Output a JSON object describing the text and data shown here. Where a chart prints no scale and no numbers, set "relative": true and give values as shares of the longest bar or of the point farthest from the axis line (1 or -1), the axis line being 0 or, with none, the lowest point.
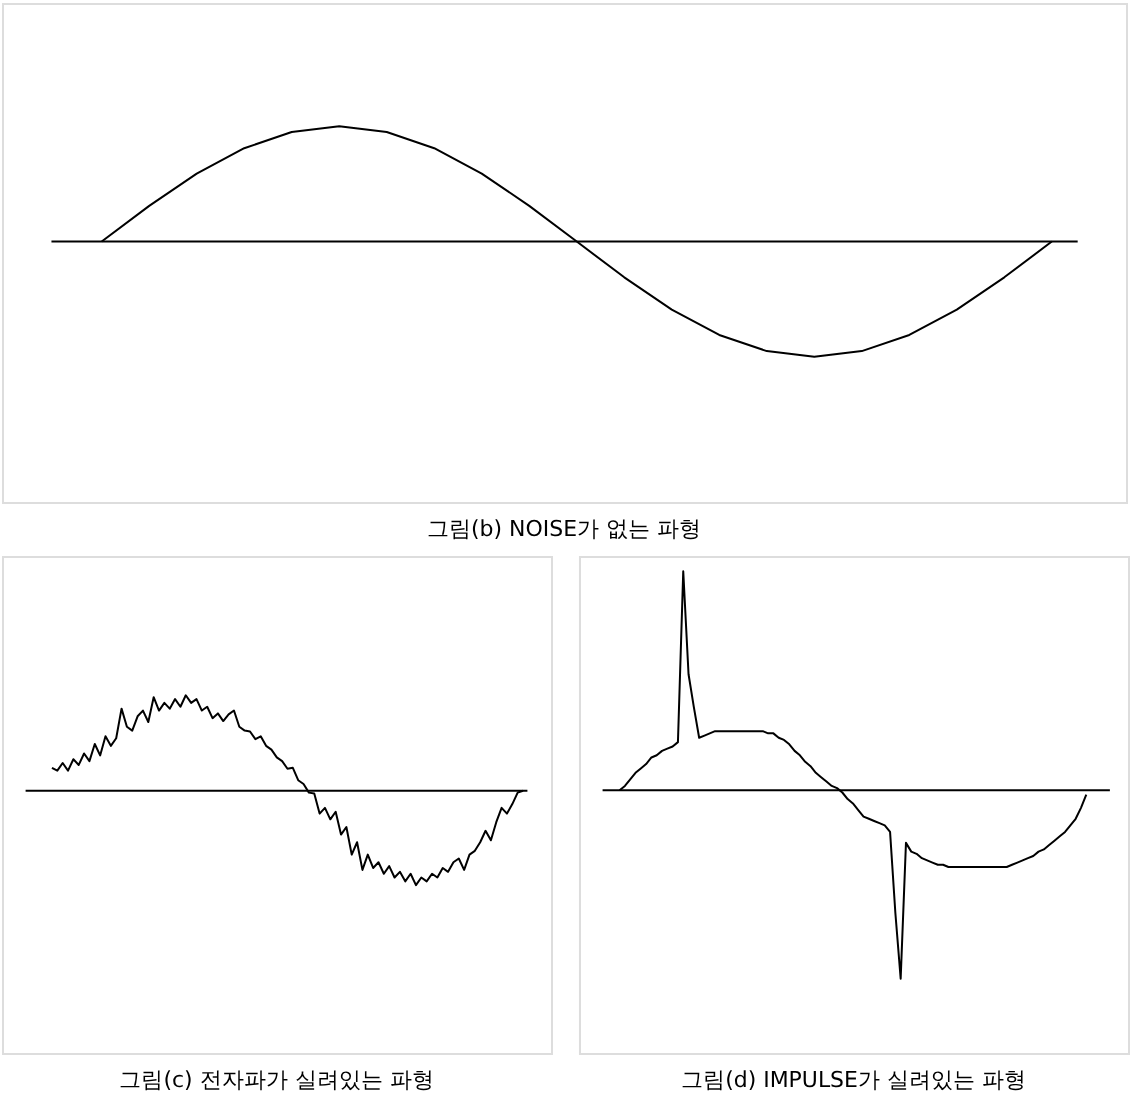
{
  "chart_data": [
    {
      "type": "line",
      "title": "그림(b) NOISE가 없는 파형",
      "relative": true,
      "categories": [
        null,
        null,
        null,
        null,
        null,
        null,
        null,
        null,
        null,
        null,
        null,
        null,
        null,
        null,
        null,
        null,
        null,
        null,
        null,
        null,
        null
      ],
      "series": [
        {
          "color": "#000000",
          "values": [
            0,
            0.31,
            0.59,
            0.81,
            0.95,
            1,
            0.95,
            0.81,
            0.59,
            0.31,
            0,
            -0.31,
            -0.59,
            -0.81,
            -0.95,
            -1,
            -0.95,
            -0.81,
            -0.59,
            -0.31,
            0
          ]
        }
      ]
    },
    {
      "type": "line",
      "title": "그림(c) 전자파가 실려있는 파형",
      "relative": true,
      "categories": [
        null,
        null,
        null,
        null,
        null,
        null,
        null,
        null,
        null,
        null,
        null,
        null,
        null,
        null,
        null,
        null,
        null,
        null,
        null,
        null,
        null,
        null,
        null,
        null,
        null,
        null,
        null,
        null,
        null,
        null,
        null,
        null,
        null,
        null,
        null,
        null,
        null,
        null,
        null,
        null,
        null,
        null,
        null,
        null,
        null,
        null,
        null,
        null,
        null,
        null,
        null,
        null,
        null,
        null,
        null,
        null,
        null,
        null,
        null,
        null,
        null,
        null,
        null,
        null,
        null,
        null,
        null,
        null,
        null,
        null,
        null,
        null,
        null,
        null,
        null,
        null,
        null,
        null,
        null,
        null,
        null,
        null,
        null,
        null,
        null,
        null,
        null,
        null,
        null
      ],
      "series": [
        {
          "color": "#000000",
          "values": [
            0.24,
            0.21,
            0.29,
            0.21,
            0.33,
            0.27,
            0.39,
            0.31,
            0.49,
            0.37,
            0.57,
            0.47,
            0.55,
            0.86,
            0.67,
            0.63,
            0.78,
            0.84,
            0.72,
            0.98,
            0.84,
            0.92,
            0.86,
            0.96,
            0.88,
            1,
            0.92,
            0.96,
            0.84,
            0.88,
            0.76,
            0.81,
            0.73,
            0.8,
            0.84,
            0.67,
            0.63,
            0.62,
            0.54,
            0.57,
            0.47,
            0.43,
            0.35,
            0.31,
            0.23,
            0.24,
            0.11,
            0.07,
            -0.02,
            -0.03,
            -0.24,
            -0.18,
            -0.3,
            -0.22,
            -0.46,
            -0.38,
            -0.67,
            -0.54,
            -0.83,
            -0.67,
            -0.81,
            -0.75,
            -0.87,
            -0.79,
            -0.91,
            -0.85,
            -0.95,
            -0.87,
            -0.99,
            -0.91,
            -0.95,
            -0.87,
            -0.91,
            -0.81,
            -0.85,
            -0.75,
            -0.71,
            -0.83,
            -0.67,
            -0.63,
            -0.54,
            -0.42,
            -0.52,
            -0.33,
            -0.18,
            -0.24,
            -0.14,
            -0.02,
            0
          ]
        }
      ]
    },
    {
      "type": "line",
      "title": "그림(d) IMPULSE가 실려있는 파형",
      "relative": true,
      "categories": [
        null,
        null,
        null,
        null,
        null,
        null,
        null,
        null,
        null,
        null,
        null,
        null,
        null,
        null,
        null,
        null,
        null,
        null,
        null,
        null,
        null,
        null,
        null,
        null,
        null,
        null,
        null,
        null,
        null,
        null,
        null,
        null,
        null,
        null,
        null,
        null,
        null,
        null,
        null,
        null,
        null,
        null,
        null,
        null,
        null,
        null,
        null,
        null,
        null,
        null,
        null,
        null,
        null,
        null,
        null,
        null,
        null,
        null,
        null,
        null,
        null,
        null,
        null,
        null,
        null,
        null,
        null,
        null,
        null,
        null,
        null,
        null,
        null,
        null,
        null,
        null,
        null,
        null,
        null,
        null,
        null,
        null,
        null,
        null,
        null,
        null,
        null,
        null,
        null
      ],
      "series": [
        {
          "color": "#000000",
          "values": [
            0,
            0.02,
            0.05,
            0.08,
            0.1,
            0.12,
            0.15,
            0.16,
            0.18,
            0.19,
            0.2,
            0.22,
            1,
            0.53,
            0.38,
            0.24,
            0.25,
            0.26,
            0.27,
            0.27,
            0.27,
            0.27,
            0.27,
            0.27,
            0.27,
            0.27,
            0.27,
            0.27,
            0.26,
            0.26,
            0.24,
            0.23,
            0.21,
            0.18,
            0.16,
            0.13,
            0.11,
            0.08,
            0.06,
            0.04,
            0.02,
            0.01,
            -0.01,
            -0.04,
            -0.06,
            -0.09,
            -0.12,
            -0.13,
            -0.14,
            -0.15,
            -0.16,
            -0.19,
            -0.56,
            -0.86,
            -0.24,
            -0.28,
            -0.29,
            -0.31,
            -0.32,
            -0.33,
            -0.34,
            -0.34,
            -0.35,
            -0.35,
            -0.35,
            -0.35,
            -0.35,
            -0.35,
            -0.35,
            -0.35,
            -0.35,
            -0.35,
            -0.35,
            -0.35,
            -0.34,
            -0.33,
            -0.32,
            -0.31,
            -0.3,
            -0.28,
            -0.27,
            -0.25,
            -0.23,
            -0.21,
            -0.19,
            -0.16,
            -0.13,
            -0.08,
            -0.02
          ]
        }
      ]
    }
  ]
}
